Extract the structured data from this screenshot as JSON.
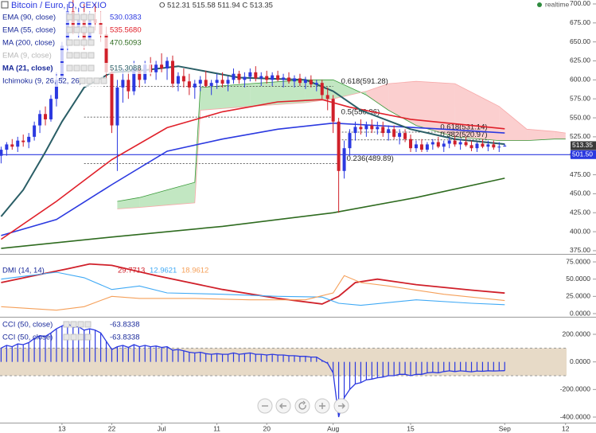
{
  "header": {
    "title": "Bitcoin / Euro, D, CEXIO",
    "ohlc": "O 512.31 515.58 511.94 C 513.35",
    "status": "realtime"
  },
  "chart_data": [
    {
      "type": "candlestick",
      "x": [
        0,
        1,
        2,
        3,
        4,
        5,
        6,
        7,
        8,
        9,
        10,
        11,
        12,
        13,
        14,
        15,
        16,
        17,
        18,
        19,
        20,
        21,
        22,
        23,
        24,
        25,
        26,
        27,
        28,
        29,
        30,
        31,
        32,
        33,
        34,
        35,
        36,
        37,
        38,
        39,
        40,
        41,
        42,
        43,
        44,
        45,
        46,
        47,
        48,
        49,
        50,
        51,
        52,
        53,
        54,
        55,
        56,
        57,
        58,
        59,
        60,
        61,
        62,
        63,
        64,
        65,
        66,
        67,
        68,
        69,
        70,
        71,
        72,
        73,
        74,
        75,
        76,
        77,
        78,
        79,
        80,
        81,
        82,
        83,
        84,
        85,
        86,
        87,
        88,
        89,
        90,
        91
      ],
      "open": [
        500,
        508,
        515,
        512,
        520,
        518,
        525,
        540,
        555,
        548,
        575,
        600,
        645,
        690,
        670,
        685,
        650,
        680,
        675,
        660,
        610,
        540,
        590,
        600,
        585,
        615,
        600,
        620,
        610,
        620,
        615,
        625,
        595,
        605,
        598,
        590,
        595,
        600,
        592,
        596,
        600,
        595,
        600,
        608,
        600,
        604,
        610,
        602,
        605,
        600,
        606,
        600,
        603,
        598,
        602,
        596,
        600,
        594,
        596,
        580,
        575,
        545,
        480,
        510,
        530,
        538,
        535,
        540,
        535,
        538,
        530,
        535,
        525,
        530,
        522,
        510,
        515,
        508,
        515,
        518,
        512,
        516,
        520,
        515,
        518,
        514,
        510,
        516,
        512,
        515,
        511,
        512.31
      ],
      "high": [
        512,
        518,
        522,
        525,
        528,
        530,
        545,
        560,
        565,
        580,
        610,
        650,
        700,
        705,
        695,
        700,
        690,
        700,
        690,
        670,
        615,
        600,
        615,
        610,
        625,
        620,
        625,
        630,
        625,
        635,
        630,
        632,
        610,
        615,
        608,
        600,
        605,
        612,
        600,
        608,
        610,
        605,
        615,
        612,
        610,
        615,
        618,
        610,
        612,
        610,
        612,
        608,
        610,
        606,
        608,
        604,
        606,
        600,
        600,
        590,
        580,
        550,
        520,
        535,
        545,
        548,
        545,
        548,
        545,
        545,
        540,
        540,
        535,
        535,
        528,
        520,
        522,
        518,
        522,
        525,
        520,
        524,
        526,
        522,
        525,
        520,
        518,
        522,
        520,
        520,
        518,
        515.58
      ],
      "low": [
        490,
        500,
        508,
        505,
        512,
        510,
        520,
        530,
        540,
        545,
        565,
        595,
        630,
        660,
        655,
        640,
        645,
        665,
        650,
        600,
        530,
        480,
        570,
        575,
        580,
        590,
        595,
        605,
        600,
        610,
        600,
        590,
        585,
        590,
        580,
        575,
        585,
        590,
        580,
        588,
        590,
        585,
        595,
        595,
        590,
        598,
        598,
        592,
        595,
        592,
        598,
        590,
        595,
        590,
        592,
        588,
        590,
        585,
        575,
        560,
        530,
        425,
        470,
        500,
        520,
        528,
        525,
        530,
        528,
        525,
        520,
        522,
        515,
        518,
        505,
        505,
        505,
        505,
        508,
        510,
        505,
        510,
        512,
        508,
        512,
        506,
        505,
        510,
        506,
        508,
        505,
        511.94
      ],
      "close": [
        508,
        515,
        512,
        520,
        518,
        525,
        540,
        555,
        548,
        575,
        600,
        645,
        690,
        670,
        685,
        650,
        680,
        675,
        660,
        610,
        540,
        590,
        600,
        585,
        615,
        600,
        620,
        610,
        620,
        615,
        625,
        595,
        605,
        598,
        590,
        595,
        600,
        592,
        596,
        600,
        595,
        600,
        608,
        600,
        604,
        610,
        602,
        605,
        600,
        606,
        600,
        603,
        598,
        602,
        596,
        600,
        594,
        596,
        580,
        575,
        545,
        480,
        510,
        530,
        538,
        535,
        540,
        535,
        538,
        530,
        535,
        525,
        530,
        522,
        510,
        515,
        508,
        515,
        518,
        512,
        516,
        520,
        515,
        518,
        514,
        510,
        516,
        512,
        515,
        511,
        512,
        513.35
      ],
      "up_color": "#2b39e0",
      "down_color": "#d0202a",
      "xlim": [
        -0.2,
        107.5
      ],
      "xticks": [
        {
          "value": 11,
          "label": "13"
        },
        {
          "value": 20,
          "label": "22"
        },
        {
          "value": 29,
          "label": "Jul"
        },
        {
          "value": 39,
          "label": "11"
        },
        {
          "value": 48,
          "label": "20"
        },
        {
          "value": 60,
          "label": "Aug"
        },
        {
          "value": 74,
          "label": "15"
        },
        {
          "value": 91,
          "label": "Sep"
        },
        {
          "value": 102,
          "label": "12"
        }
      ],
      "ylim": [
        371.8,
        705.2
      ],
      "yticks": [
        {
          "value": 375,
          "label": "375.00"
        },
        {
          "value": 400,
          "label": "400.00"
        },
        {
          "value": 425,
          "label": "425.00"
        },
        {
          "value": 450,
          "label": "450.00"
        },
        {
          "value": 475,
          "label": "475.00"
        },
        {
          "value": 500,
          "label": "500.00"
        },
        {
          "value": 525,
          "label": "525.00"
        },
        {
          "value": 550,
          "label": "550.00"
        },
        {
          "value": 575,
          "label": "575.00"
        },
        {
          "value": 600,
          "label": "600.00"
        },
        {
          "value": 625,
          "label": "625.00"
        },
        {
          "value": 650,
          "label": "650.00"
        },
        {
          "value": 675,
          "label": "675.00"
        },
        {
          "value": 700,
          "label": "700.00"
        }
      ],
      "grid": false,
      "series": [
        {
          "name": "EMA (90, close)",
          "color": "#2b39e0",
          "value_label": "530.0383",
          "x": [
            0,
            10,
            20,
            30,
            40,
            50,
            60,
            70,
            80,
            91
          ],
          "values": [
            395,
            416,
            462,
            506,
            522,
            535,
            543,
            539,
            535,
            530.0383
          ]
        },
        {
          "name": "EMA (55, close)",
          "color": "#e0202a",
          "value_label": "535.5680",
          "x": [
            0,
            10,
            20,
            30,
            40,
            50,
            58,
            63,
            74,
            91
          ],
          "values": [
            390,
            440,
            495,
            537,
            558,
            571,
            574,
            564,
            548,
            535.568
          ]
        },
        {
          "name": "MA (200, close)",
          "color": "#2e6b1f",
          "value_label": "470.5093",
          "x": [
            0,
            20,
            40,
            60,
            75,
            91
          ],
          "values": [
            378,
            393,
            407,
            425,
            445,
            470.5093
          ]
        },
        {
          "name": "EMA (9, close)",
          "color": "#b8b8b8",
          "hidden": true
        },
        {
          "name": "MA (21, close)",
          "color": "#2a5e66",
          "value_label": "515.3088",
          "bold": true,
          "x": [
            0,
            4,
            8,
            11,
            15,
            20,
            25,
            32,
            43,
            55,
            60,
            65,
            74,
            82,
            91
          ],
          "values": [
            420,
            455,
            505,
            545,
            590,
            610,
            612,
            618,
            603,
            600,
            585,
            560,
            535,
            522,
            515.3088
          ]
        },
        {
          "name": "Ichimoku (9, 26, 52, 26)",
          "color": "#3a9a3a",
          "cloud": true,
          "x": [
            21,
            25,
            30,
            35,
            36,
            45,
            55,
            60,
            66,
            70,
            75,
            82,
            90,
            95,
            100,
            102
          ],
          "span_a": [
            440,
            445,
            455,
            465,
            590,
            595,
            600,
            600,
            580,
            560,
            540,
            525,
            520,
            520,
            522,
            522
          ],
          "span_b": [
            430,
            432,
            435,
            438,
            560,
            565,
            570,
            575,
            585,
            595,
            598,
            595,
            565,
            535,
            532,
            530
          ],
          "bull_color": "#8fd48f",
          "bear_color": "#f7a8a8"
        }
      ],
      "fib": [
        {
          "label": "0.618(591.28)",
          "value": 591.28,
          "from": 15,
          "to": 60
        },
        {
          "label": "0.5(550.96)",
          "value": 550.96,
          "from": 15,
          "to": 60
        },
        {
          "label": "0.236(489.89)",
          "value": 489.89,
          "from": 15,
          "to": 61
        },
        {
          "label": "0.618(531.14)",
          "value": 531.14,
          "from": 61,
          "to": 88
        },
        {
          "label": "0.382(520.97)",
          "value": 520.97,
          "from": 61,
          "to": 88
        }
      ],
      "price_line": {
        "value": 501.5,
        "label": "501.50",
        "color": "#2b39e0"
      },
      "last_price": {
        "value": 513.35,
        "label": "513.35",
        "color": "#3a3a3a"
      }
    },
    {
      "type": "line",
      "title": "DMI (14, 14)",
      "ylim": [
        -3.46,
        83.1
      ],
      "yticks": [
        {
          "value": 0,
          "label": "0.0000"
        },
        {
          "value": 25,
          "label": "25.0000"
        },
        {
          "value": 50,
          "label": "50.0000"
        },
        {
          "value": 75,
          "label": "75.0000"
        }
      ],
      "series": [
        {
          "color": "#d0202a",
          "value_label": "29.7713",
          "x": [
            0,
            6,
            12,
            16,
            20,
            28,
            40,
            50,
            58,
            61,
            64,
            68,
            75,
            85,
            91
          ],
          "values": [
            45,
            55,
            65,
            72,
            70,
            55,
            35,
            22,
            14,
            25,
            45,
            50,
            42,
            34,
            29.7713
          ]
        },
        {
          "color": "#3fa9f5",
          "value_label": "12.9621",
          "x": [
            0,
            5,
            10,
            15,
            20,
            25,
            30,
            40,
            50,
            58,
            61,
            65,
            75,
            85,
            91
          ],
          "values": [
            50,
            55,
            60,
            52,
            35,
            40,
            30,
            28,
            25,
            24,
            15,
            12,
            20,
            15,
            12.9621
          ]
        },
        {
          "color": "#f5a05a",
          "value_label": "18.9612",
          "x": [
            0,
            10,
            15,
            20,
            25,
            35,
            45,
            55,
            60,
            62,
            65,
            70,
            80,
            91
          ],
          "values": [
            10,
            5,
            10,
            25,
            22,
            22,
            20,
            20,
            30,
            55,
            45,
            40,
            28,
            18.9612
          ]
        }
      ]
    },
    {
      "type": "histogram-line",
      "ylim": [
        -434.6,
        315.4
      ],
      "yticks": [
        {
          "value": -400,
          "label": "-400.0000"
        },
        {
          "value": -200,
          "label": "-200.0000"
        },
        {
          "value": 0,
          "label": "0.0000"
        },
        {
          "value": 200,
          "label": "200.0000"
        }
      ],
      "band": [
        -100,
        100
      ],
      "band_color": "#e3d3bd",
      "series": [
        {
          "name": "CCI (50, close)",
          "color": "#2b39e0",
          "value_label": "-63.8338",
          "values": [
            100,
            120,
            110,
            130,
            125,
            140,
            170,
            190,
            185,
            210,
            240,
            260,
            280,
            250,
            255,
            230,
            240,
            230,
            210,
            150,
            90,
            110,
            120,
            105,
            125,
            110,
            120,
            110,
            115,
            105,
            110,
            85,
            90,
            80,
            70,
            65,
            70,
            60,
            55,
            60,
            55,
            55,
            65,
            55,
            60,
            65,
            55,
            55,
            50,
            55,
            50,
            50,
            45,
            45,
            40,
            40,
            35,
            35,
            10,
            -10,
            -80,
            -400,
            -260,
            -200,
            -160,
            -150,
            -130,
            -125,
            -115,
            -110,
            -100,
            -100,
            -90,
            -90,
            -100,
            -90,
            -90,
            -80,
            -75,
            -80,
            -70,
            -65,
            -70,
            -65,
            -68,
            -72,
            -66,
            -68,
            -64,
            -66,
            -65,
            -63.8338
          ]
        },
        {
          "name": "CCI (50, close)",
          "color": "#2b39e0",
          "value_label": "-63.8338"
        }
      ]
    }
  ]
}
